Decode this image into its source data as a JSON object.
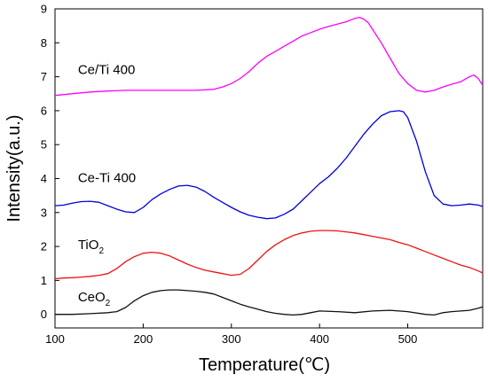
{
  "chart_data": {
    "type": "line",
    "title": "",
    "xlabel": "Temperature(℃)",
    "ylabel": "Intensity(a.u.)",
    "xlim": [
      100,
      585
    ],
    "ylim": [
      -0.4,
      9
    ],
    "xticks": [
      100,
      200,
      300,
      400,
      500
    ],
    "yticks": [
      0,
      1,
      2,
      3,
      4,
      5,
      6,
      7,
      8,
      9
    ],
    "grid": false,
    "legend": "none",
    "series": [
      {
        "name": "Ce/Ti 400",
        "label_main": "Ce/Ti 400",
        "label_sub": "",
        "label_at": [
          126,
          7.08
        ],
        "color": "#ff00ff",
        "x": [
          100,
          120,
          140,
          160,
          180,
          200,
          220,
          240,
          260,
          280,
          290,
          300,
          310,
          320,
          330,
          340,
          350,
          360,
          370,
          380,
          390,
          400,
          410,
          420,
          430,
          440,
          445,
          450,
          455,
          460,
          470,
          480,
          490,
          500,
          510,
          520,
          530,
          540,
          550,
          560,
          570,
          575,
          580,
          585
        ],
        "y": [
          6.45,
          6.5,
          6.55,
          6.58,
          6.6,
          6.6,
          6.6,
          6.6,
          6.6,
          6.63,
          6.7,
          6.8,
          6.95,
          7.15,
          7.4,
          7.6,
          7.75,
          7.9,
          8.05,
          8.2,
          8.3,
          8.4,
          8.48,
          8.55,
          8.62,
          8.72,
          8.75,
          8.7,
          8.6,
          8.4,
          8.0,
          7.55,
          7.1,
          6.8,
          6.6,
          6.55,
          6.6,
          6.7,
          6.78,
          6.85,
          7.0,
          7.05,
          6.95,
          6.75
        ]
      },
      {
        "name": "Ce-Ti 400",
        "label_main": "Ce-Ti 400",
        "label_sub": "",
        "label_at": [
          126,
          3.9
        ],
        "color": "#0000dd",
        "x": [
          100,
          110,
          120,
          130,
          140,
          150,
          160,
          170,
          180,
          190,
          200,
          210,
          220,
          230,
          240,
          250,
          260,
          270,
          280,
          290,
          300,
          310,
          320,
          330,
          340,
          350,
          360,
          370,
          380,
          390,
          400,
          410,
          420,
          430,
          440,
          450,
          460,
          470,
          480,
          490,
          495,
          500,
          510,
          520,
          530,
          540,
          550,
          560,
          570,
          580,
          585
        ],
        "y": [
          3.2,
          3.22,
          3.28,
          3.32,
          3.33,
          3.3,
          3.2,
          3.1,
          3.02,
          3.0,
          3.15,
          3.38,
          3.55,
          3.68,
          3.78,
          3.8,
          3.75,
          3.62,
          3.45,
          3.3,
          3.15,
          3.02,
          2.92,
          2.86,
          2.82,
          2.84,
          2.95,
          3.1,
          3.35,
          3.6,
          3.85,
          4.05,
          4.3,
          4.6,
          4.95,
          5.3,
          5.6,
          5.85,
          5.97,
          6.0,
          5.97,
          5.8,
          5.1,
          4.2,
          3.5,
          3.25,
          3.2,
          3.22,
          3.25,
          3.22,
          3.18
        ]
      },
      {
        "name": "TiO2",
        "label_main": "TiO",
        "label_sub": "2",
        "label_at": [
          126,
          1.92
        ],
        "color": "#ee1111",
        "x": [
          100,
          110,
          120,
          130,
          140,
          150,
          160,
          170,
          180,
          190,
          200,
          210,
          220,
          230,
          240,
          250,
          260,
          270,
          280,
          290,
          300,
          310,
          320,
          330,
          340,
          350,
          360,
          370,
          380,
          390,
          400,
          410,
          420,
          430,
          440,
          450,
          460,
          470,
          480,
          490,
          500,
          510,
          520,
          530,
          540,
          550,
          560,
          570,
          580,
          585
        ],
        "y": [
          1.05,
          1.07,
          1.08,
          1.1,
          1.12,
          1.15,
          1.2,
          1.35,
          1.55,
          1.7,
          1.8,
          1.83,
          1.8,
          1.72,
          1.6,
          1.48,
          1.38,
          1.3,
          1.25,
          1.2,
          1.15,
          1.18,
          1.35,
          1.6,
          1.85,
          2.05,
          2.2,
          2.32,
          2.4,
          2.45,
          2.47,
          2.47,
          2.46,
          2.43,
          2.4,
          2.35,
          2.3,
          2.25,
          2.2,
          2.12,
          2.05,
          1.95,
          1.85,
          1.75,
          1.65,
          1.55,
          1.45,
          1.38,
          1.28,
          1.22
        ]
      },
      {
        "name": "CeO2",
        "label_main": "CeO",
        "label_sub": "2",
        "label_at": [
          126,
          0.38
        ],
        "color": "#111111",
        "x": [
          100,
          120,
          140,
          160,
          170,
          180,
          190,
          200,
          210,
          220,
          230,
          240,
          250,
          260,
          270,
          280,
          290,
          300,
          310,
          320,
          330,
          340,
          350,
          360,
          370,
          380,
          390,
          400,
          420,
          440,
          460,
          480,
          500,
          520,
          530,
          540,
          550,
          560,
          570,
          580,
          585
        ],
        "y": [
          0.0,
          0.0,
          0.02,
          0.05,
          0.08,
          0.2,
          0.4,
          0.55,
          0.65,
          0.7,
          0.72,
          0.72,
          0.7,
          0.68,
          0.65,
          0.6,
          0.5,
          0.4,
          0.3,
          0.22,
          0.15,
          0.08,
          0.03,
          0.0,
          -0.02,
          0.0,
          0.05,
          0.1,
          0.08,
          0.05,
          0.1,
          0.12,
          0.08,
          0.0,
          -0.02,
          0.05,
          0.08,
          0.1,
          0.12,
          0.18,
          0.22
        ]
      }
    ]
  }
}
